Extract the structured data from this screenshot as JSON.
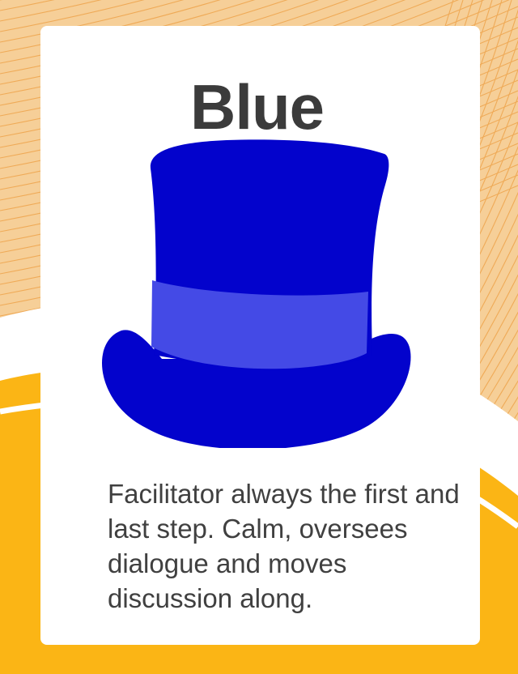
{
  "card": {
    "title": "Blue",
    "description": "Facilitator always the first and last step. Calm, oversees dialogue and moves discussion along."
  },
  "colors": {
    "background_peach": "#f6cf98",
    "background_lines": "#eea44c",
    "background_yellow": "#fbb515",
    "card": "#ffffff",
    "title_text": "#3b3b3b",
    "hat_body": "#0303cc",
    "hat_band": "#444ae6"
  },
  "icons": {
    "hat": "blue-top-hat-icon"
  }
}
